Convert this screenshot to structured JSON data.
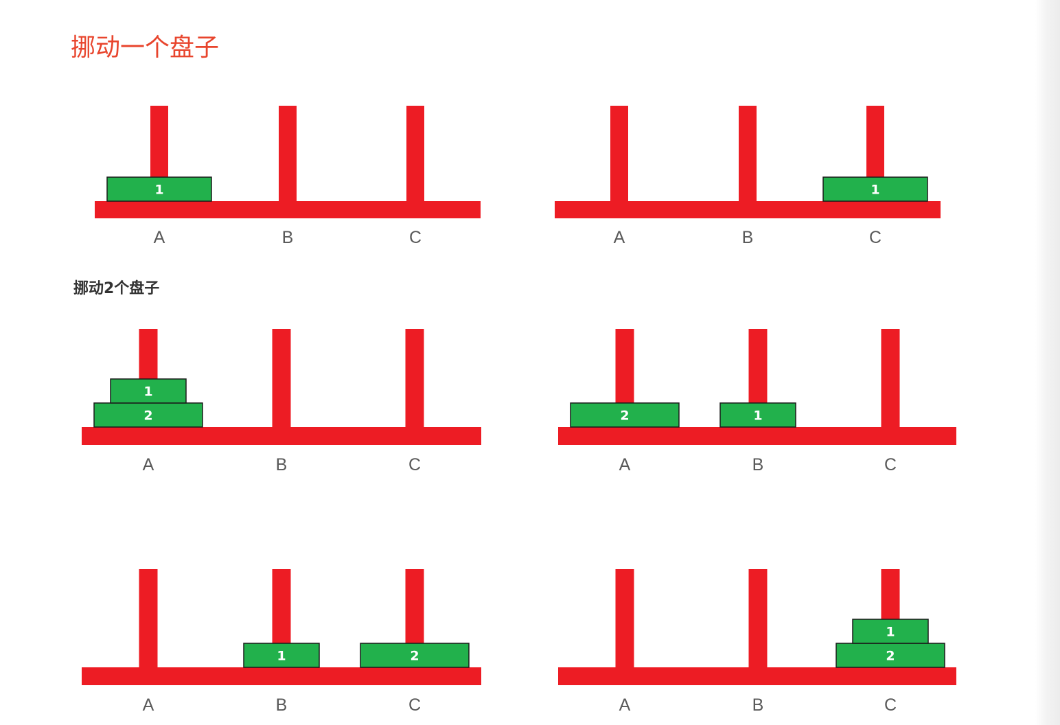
{
  "heading_one_disk": "挪动一个盘子",
  "heading_two_disks": "挪动2个盘子",
  "colors": {
    "title": "#e8452d",
    "rod": "#ed1c24",
    "disk": "#22b14c",
    "disk_border": "#1a1a1a",
    "peg_label": "#595959"
  },
  "diagrams": [
    {
      "pegs": [
        "A",
        "B",
        "C"
      ],
      "disks": [
        {
          "label": "1",
          "size": 1,
          "peg": "A",
          "level": 0
        }
      ]
    },
    {
      "pegs": [
        "A",
        "B",
        "C"
      ],
      "disks": [
        {
          "label": "1",
          "size": 1,
          "peg": "C",
          "level": 0
        }
      ]
    },
    {
      "pegs": [
        "A",
        "B",
        "C"
      ],
      "disks": [
        {
          "label": "2",
          "size": 2,
          "peg": "A",
          "level": 0
        },
        {
          "label": "1",
          "size": 1,
          "peg": "A",
          "level": 1
        }
      ]
    },
    {
      "pegs": [
        "A",
        "B",
        "C"
      ],
      "disks": [
        {
          "label": "2",
          "size": 2,
          "peg": "A",
          "level": 0
        },
        {
          "label": "1",
          "size": 1,
          "peg": "B",
          "level": 0
        }
      ]
    },
    {
      "pegs": [
        "A",
        "B",
        "C"
      ],
      "disks": [
        {
          "label": "1",
          "size": 1,
          "peg": "B",
          "level": 0
        },
        {
          "label": "2",
          "size": 2,
          "peg": "C",
          "level": 0
        }
      ]
    },
    {
      "pegs": [
        "A",
        "B",
        "C"
      ],
      "disks": [
        {
          "label": "2",
          "size": 2,
          "peg": "C",
          "level": 0
        },
        {
          "label": "1",
          "size": 1,
          "peg": "C",
          "level": 1
        }
      ]
    }
  ]
}
